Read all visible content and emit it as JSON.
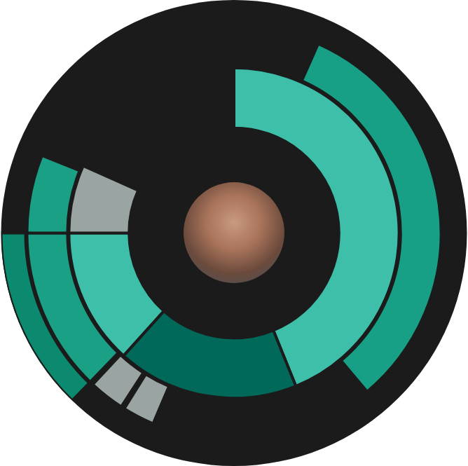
{
  "chart_data": {
    "type": "sunburst",
    "tick_labels": false,
    "segments": [
      {
        "ring": 1,
        "start": 0,
        "end": 158,
        "color": "#3dbfaa"
      },
      {
        "ring": 1,
        "start": 158,
        "end": 222,
        "color": "#00695a"
      },
      {
        "ring": 1,
        "start": 222,
        "end": 270,
        "color": "#3dbfa9"
      },
      {
        "ring": 1,
        "start": 270,
        "end": 294,
        "color": "#9aa5a3"
      },
      {
        "ring": 2,
        "start": 24,
        "end": 140,
        "color": "#17a085"
      },
      {
        "ring": 2,
        "start": 224,
        "end": 270,
        "color": "#1aa085"
      },
      {
        "ring": 2,
        "start": 270,
        "end": 292,
        "color": "#1aa085"
      },
      {
        "ring": 2,
        "start": 213,
        "end": 223,
        "color": "#9aa5a3"
      },
      {
        "ring": 2,
        "start": 203,
        "end": 212,
        "color": "#9aa5a3"
      },
      {
        "ring": 3,
        "start": 224,
        "end": 270,
        "color": "#0b8a70"
      }
    ]
  }
}
